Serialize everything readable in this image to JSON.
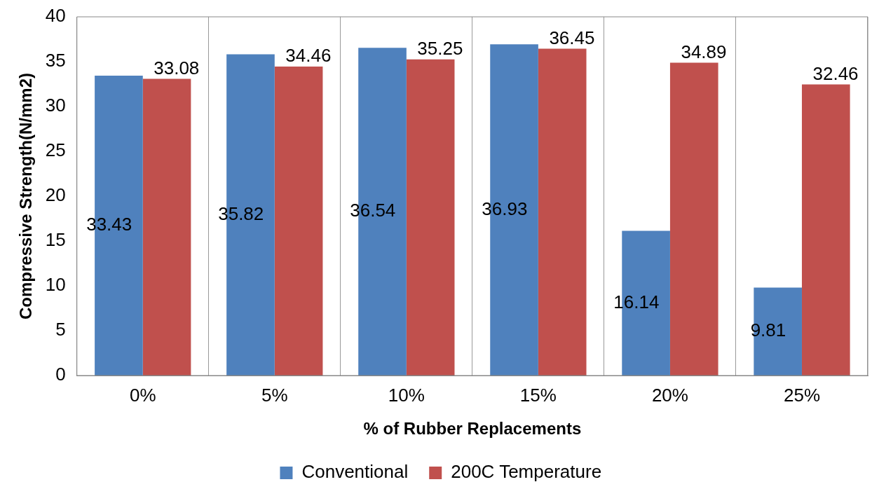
{
  "chart_data": {
    "type": "bar",
    "xlabel": "% of Rubber Replacements",
    "ylabel": "Compressive Strength(N/mm2)",
    "categories": [
      "0%",
      "5%",
      "10%",
      "15%",
      "20%",
      "25%"
    ],
    "series": [
      {
        "name": "Conventional",
        "color": "#4f81bd",
        "values": [
          33.43,
          35.82,
          36.54,
          36.93,
          16.14,
          9.81
        ]
      },
      {
        "name": "200C Temperature",
        "color": "#c0504d",
        "values": [
          33.08,
          34.46,
          35.25,
          36.45,
          34.89,
          32.46
        ]
      }
    ],
    "ylim": [
      0,
      40
    ],
    "yticks": [
      0,
      5,
      10,
      15,
      20,
      25,
      30,
      35,
      40
    ],
    "grid": "x",
    "legend": "bottom",
    "data_labels": true
  }
}
